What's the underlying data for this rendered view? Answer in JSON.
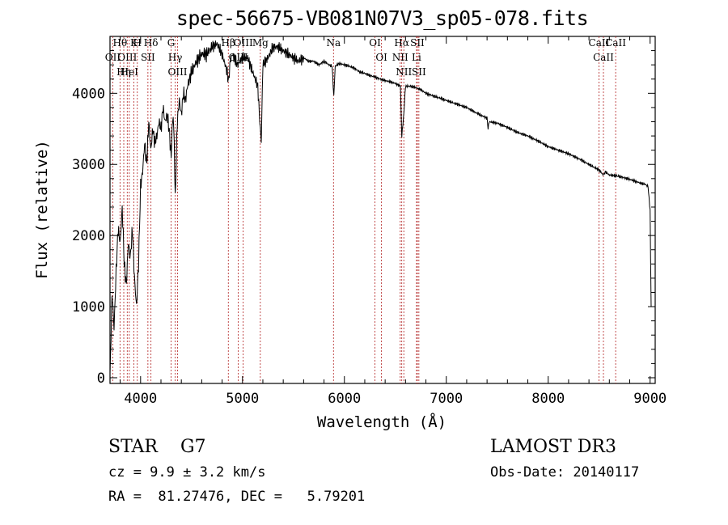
{
  "chart_data": {
    "type": "line",
    "title": "spec-56675-VB081N07V3_sp05-078.fits",
    "xlabel": "Wavelength (Å)",
    "ylabel": "Flux (relative)",
    "xlim": [
      3700,
      9050
    ],
    "ylim": [
      -80,
      4800
    ],
    "xticks": [
      4000,
      5000,
      6000,
      7000,
      8000,
      9000
    ],
    "yticks": [
      0,
      1000,
      2000,
      3000,
      4000
    ],
    "xtick_labels": [
      "4000",
      "5000",
      "6000",
      "7000",
      "8000",
      "9000"
    ],
    "ytick_labels": [
      "0",
      "1000",
      "2000",
      "3000",
      "4000"
    ],
    "series": [
      {
        "name": "flux",
        "x": [
          3700,
          3720,
          3740,
          3760,
          3780,
          3800,
          3820,
          3840,
          3860,
          3880,
          3900,
          3920,
          3940,
          3960,
          3980,
          4000,
          4020,
          4040,
          4060,
          4080,
          4100,
          4120,
          4140,
          4160,
          4180,
          4200,
          4220,
          4240,
          4260,
          4280,
          4300,
          4310,
          4320,
          4330,
          4340,
          4360,
          4380,
          4400,
          4420,
          4440,
          4460,
          4480,
          4500,
          4550,
          4600,
          4650,
          4700,
          4750,
          4800,
          4850,
          4861,
          4880,
          4900,
          4950,
          5000,
          5050,
          5100,
          5150,
          5170,
          5184,
          5200,
          5250,
          5300,
          5350,
          5400,
          5450,
          5500,
          5550,
          5600,
          5650,
          5700,
          5750,
          5800,
          5850,
          5880,
          5890,
          5896,
          5910,
          5950,
          6000,
          6050,
          6100,
          6150,
          6200,
          6250,
          6300,
          6350,
          6400,
          6450,
          6500,
          6550,
          6563,
          6580,
          6600,
          6650,
          6700,
          6750,
          6800,
          6900,
          7000,
          7100,
          7200,
          7300,
          7400,
          7410,
          7420,
          7500,
          7600,
          7700,
          7800,
          7900,
          8000,
          8100,
          8200,
          8300,
          8400,
          8500,
          8542,
          8560,
          8600,
          8662,
          8700,
          8800,
          8900,
          8950,
          8980,
          9000,
          9010
        ],
        "y": [
          0,
          1200,
          700,
          1500,
          2100,
          1900,
          2400,
          1600,
          1300,
          1900,
          1700,
          2100,
          1400,
          1000,
          1600,
          2700,
          2900,
          3300,
          3000,
          3600,
          3200,
          3500,
          3300,
          3400,
          3600,
          3500,
          3800,
          3600,
          3700,
          3500,
          3100,
          3500,
          3700,
          3300,
          2500,
          3600,
          3900,
          3700,
          4000,
          3900,
          4100,
          4200,
          4300,
          4450,
          4550,
          4550,
          4650,
          4700,
          4550,
          4300,
          4150,
          4450,
          4550,
          4400,
          4500,
          4500,
          4300,
          4100,
          3600,
          3300,
          4400,
          4500,
          4650,
          4650,
          4600,
          4550,
          4500,
          4450,
          4500,
          4450,
          4450,
          4400,
          4450,
          4400,
          4380,
          4100,
          3950,
          4380,
          4420,
          4400,
          4380,
          4350,
          4300,
          4280,
          4250,
          4230,
          4200,
          4180,
          4160,
          4140,
          4100,
          3400,
          3650,
          4100,
          4100,
          4080,
          4050,
          4000,
          3950,
          3900,
          3850,
          3800,
          3720,
          3650,
          3500,
          3600,
          3580,
          3520,
          3450,
          3400,
          3330,
          3250,
          3200,
          3150,
          3080,
          3000,
          2920,
          2850,
          2900,
          2850,
          2840,
          2830,
          2790,
          2740,
          2720,
          2690,
          2350,
          1000
        ]
      }
    ],
    "line_names": [
      "Hθ",
      "OII",
      "OIII",
      "Hη",
      "K",
      "HeI",
      "H",
      "Hδ",
      "SII",
      "G",
      "Hγ",
      "OIII",
      "Hβ",
      "OIII",
      "OIII",
      "Mg",
      "Na",
      "OI",
      "OI",
      "Hα",
      "NII",
      "NII",
      "SII",
      "Li",
      "SII",
      "CaII",
      "CaII",
      "CaII"
    ],
    "line_wavelengths": [
      3798,
      3727,
      3869,
      3835,
      3934,
      3889,
      3968,
      4102,
      4072,
      4300,
      4340,
      4363,
      4861,
      4959,
      5007,
      5175,
      5893,
      6300,
      6364,
      6563,
      6548,
      6583,
      6716,
      6708,
      6731,
      8498,
      8542,
      8662
    ]
  },
  "footer": {
    "left_line1": "STAR    G7",
    "left_line2": "cz = 9.9 ± 3.2 km/s",
    "left_line3": "RA =  81.27476, DEC =   5.79201",
    "right_line1": "LAMOST DR3",
    "right_line2": "Obs-Date: 20140117"
  }
}
